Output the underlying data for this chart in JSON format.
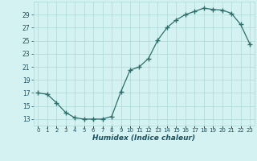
{
  "x": [
    0,
    1,
    2,
    3,
    4,
    5,
    6,
    7,
    8,
    9,
    10,
    11,
    12,
    13,
    14,
    15,
    16,
    17,
    18,
    19,
    20,
    21,
    22,
    23
  ],
  "y": [
    17.0,
    16.8,
    15.5,
    14.0,
    13.2,
    13.0,
    13.0,
    13.0,
    13.4,
    17.2,
    20.5,
    21.0,
    22.3,
    25.1,
    27.0,
    28.2,
    29.0,
    29.5,
    30.0,
    29.8,
    29.7,
    29.2,
    27.5,
    24.5
  ],
  "line_color": "#2e6e6a",
  "marker": "+",
  "marker_size": 4,
  "marker_linewidth": 1.0,
  "bg_color": "#d4f2f2",
  "grid_color": "#aed8d8",
  "xlabel": "Humidex (Indice chaleur)",
  "xlabel_color": "#1a5060",
  "tick_color": "#1a5060",
  "yticks": [
    13,
    15,
    17,
    19,
    21,
    23,
    25,
    27,
    29
  ],
  "xtick_labels": [
    "0",
    "1",
    "2",
    "3",
    "4",
    "5",
    "6",
    "7",
    "8",
    "9",
    "10",
    "11",
    "12",
    "13",
    "14",
    "15",
    "16",
    "17",
    "18",
    "19",
    "20",
    "21",
    "22",
    "23"
  ],
  "ylim": [
    12.0,
    31.0
  ],
  "xlim": [
    -0.5,
    23.5
  ]
}
